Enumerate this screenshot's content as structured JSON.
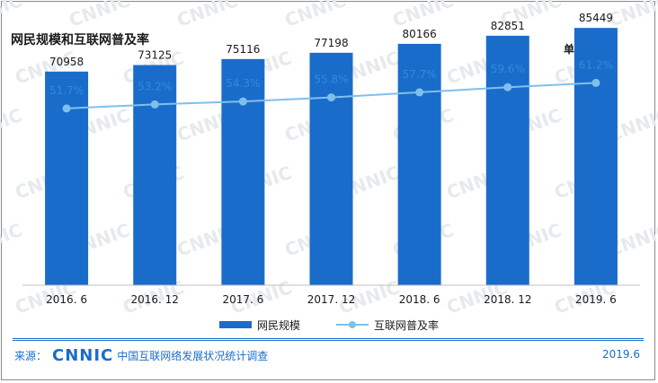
{
  "title": "网民规模和互联网普及率",
  "unit": "单位：万人",
  "watermark": "CNNIC",
  "legend": {
    "bar_label": "网民规模",
    "line_label": "互联网普及率"
  },
  "footer": {
    "source_label": "来源：",
    "logo_text": "CNNIC",
    "organization": "中国互联网络发展状况统计调查",
    "date": "2019.6"
  },
  "colors": {
    "bar": "#1a6ccb",
    "line": "#7fc0ea",
    "rate_label": "#2b8fd6",
    "accent": "#1a6ccb"
  },
  "chart_data": {
    "type": "bar",
    "categories": [
      "2016. 6",
      "2016. 12",
      "2017. 6",
      "2017. 12",
      "2018. 6",
      "2018. 12",
      "2019. 6"
    ],
    "series": [
      {
        "name": "网民规模",
        "type": "bar",
        "values": [
          70958,
          73125,
          75116,
          77198,
          80166,
          82851,
          85449
        ],
        "labels": [
          "70958",
          "73125",
          "75116",
          "77198",
          "80166",
          "82851",
          "85449"
        ]
      },
      {
        "name": "互联网普及率",
        "type": "line",
        "values": [
          51.7,
          53.2,
          54.3,
          55.8,
          57.7,
          59.6,
          61.2
        ],
        "labels": [
          "51.7%",
          "53.2%",
          "54.3%",
          "55.8%",
          "57.7%",
          "59.6%",
          "61.2%"
        ]
      }
    ],
    "legend_position": "bottom",
    "grid": false
  }
}
